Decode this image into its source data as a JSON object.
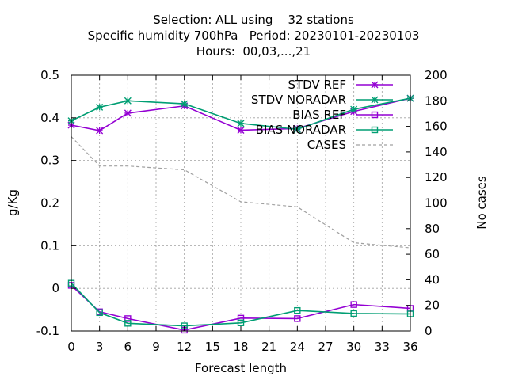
{
  "chart_data": {
    "type": "line",
    "title_lines": [
      "Selection: ALL using    32 stations",
      "Specific humidity 700hPa   Period: 20230101-20230103",
      "Hours:  00,03,...,21"
    ],
    "xlabel": "Forecast length",
    "ylabel": "g/Kg",
    "y2label": "No cases",
    "xlim": [
      0,
      36
    ],
    "ylim": [
      -0.1,
      0.5
    ],
    "y2lim": [
      0,
      200
    ],
    "xticks": [
      "0",
      "3",
      "6",
      "9",
      "12",
      "15",
      "18",
      "21",
      "24",
      "27",
      "30",
      "33",
      "36"
    ],
    "yticks": [
      "-0.1",
      "0",
      "0.1",
      "0.2",
      "0.3",
      "0.4",
      "0.5"
    ],
    "y2ticks": [
      "0",
      "20",
      "40",
      "60",
      "80",
      "100",
      "120",
      "140",
      "160",
      "180",
      "200"
    ],
    "grid": true,
    "legend_position": "top-right",
    "x": [
      0,
      3,
      6,
      12,
      18,
      24,
      30,
      36
    ],
    "series": [
      {
        "name": "STDV REF",
        "axis": "y1",
        "color": "#9400d3",
        "marker": "star",
        "values": [
          0.383,
          0.37,
          0.411,
          0.428,
          0.371,
          0.375,
          0.415,
          0.446
        ]
      },
      {
        "name": "STDV NORADAR",
        "axis": "y1",
        "color": "#009e73",
        "marker": "star",
        "values": [
          0.393,
          0.425,
          0.44,
          0.433,
          0.387,
          0.373,
          0.42,
          0.446
        ]
      },
      {
        "name": "BIAS REF",
        "axis": "y1",
        "color": "#9400d3",
        "marker": "square",
        "values": [
          0.007,
          -0.055,
          -0.071,
          -0.098,
          -0.07,
          -0.071,
          -0.038,
          -0.047
        ]
      },
      {
        "name": "BIAS NORADAR",
        "axis": "y1",
        "color": "#009e73",
        "marker": "square",
        "values": [
          0.012,
          -0.057,
          -0.082,
          -0.088,
          -0.081,
          -0.052,
          -0.059,
          -0.06
        ]
      },
      {
        "name": "CASES",
        "axis": "y2",
        "color": "#a0a0a0",
        "marker": "none",
        "dashed": true,
        "values": [
          152,
          129,
          129,
          126,
          101,
          97,
          69,
          65
        ]
      }
    ]
  }
}
